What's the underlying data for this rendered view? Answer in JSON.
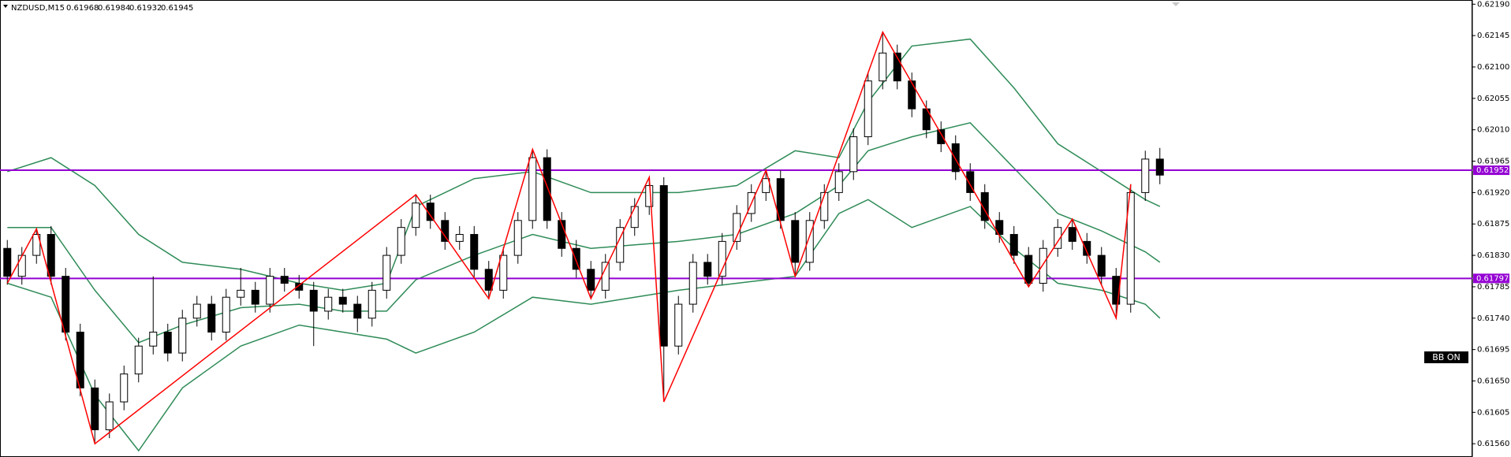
{
  "chart_data": {
    "type": "candlestick",
    "title": "NZDUSD,M15",
    "indicator_label": "BB ON",
    "ylim": [
      0.61541,
      0.62196
    ],
    "yticks": [
      {
        "value": 0.6219,
        "label": "0.62190"
      },
      0.62145,
      {
        "value": 0.621,
        "label": "0.62100"
      },
      0.62055,
      {
        "value": 0.6201,
        "label": "0.62010"
      },
      0.61965,
      {
        "value": 0.6192,
        "label": "0.61920"
      },
      0.61875,
      {
        "value": 0.6183,
        "label": "0.61830"
      },
      0.61785,
      {
        "value": 0.6174,
        "label": "0.61740"
      },
      0.61695,
      {
        "value": 0.6165,
        "label": "0.61650"
      },
      0.61605,
      {
        "value": 0.6156,
        "label": "0.61560"
      }
    ],
    "open": [
      0.6184,
      0.618,
      0.6183,
      0.6186,
      0.618,
      0.6172,
      0.6164,
      0.6158,
      0.6162,
      0.6166,
      0.617,
      0.6172,
      0.6169,
      0.6174,
      0.6176,
      0.6172,
      0.6177,
      0.6178,
      0.6176,
      0.618,
      0.6179,
      0.6178,
      0.6175,
      0.6177,
      0.6176,
      0.6174,
      0.6178,
      0.6183,
      0.6187,
      0.61905,
      0.6188,
      0.6185,
      0.6186,
      0.6181,
      0.6178,
      0.6183,
      0.6188,
      0.6197,
      0.6188,
      0.6184,
      0.6181,
      0.6178,
      0.6182,
      0.6187,
      0.619,
      0.6193,
      0.617,
      0.6176,
      0.6182,
      0.618,
      0.6185,
      0.6189,
      0.6192,
      0.6194,
      0.6188,
      0.6182,
      0.6188,
      0.6192,
      0.6195,
      0.62,
      0.6208,
      0.6212,
      0.6208,
      0.6204,
      0.6201,
      0.6199,
      0.6195,
      0.6192,
      0.6188,
      0.6186,
      0.6183,
      0.6179,
      0.6184,
      0.6187,
      0.6185,
      0.6183,
      0.618,
      0.6176,
      0.6192,
      0.61968
    ],
    "high": [
      0.61852,
      0.61842,
      0.61868,
      0.61872,
      0.61812,
      0.61732,
      0.61652,
      0.61632,
      0.61672,
      0.61712,
      0.618,
      0.61732,
      0.61752,
      0.61772,
      0.61772,
      0.61782,
      0.61812,
      0.61792,
      0.61812,
      0.61812,
      0.61802,
      0.61792,
      0.61782,
      0.61782,
      0.61772,
      0.61792,
      0.61842,
      0.61882,
      0.61917,
      0.61917,
      0.61892,
      0.61872,
      0.61872,
      0.61822,
      0.61842,
      0.61892,
      0.61982,
      0.61982,
      0.61892,
      0.61852,
      0.61822,
      0.61832,
      0.61882,
      0.61912,
      0.61942,
      0.61942,
      0.61772,
      0.61832,
      0.61832,
      0.61862,
      0.61902,
      0.61932,
      0.61952,
      0.61952,
      0.61892,
      0.61892,
      0.61932,
      0.61962,
      0.62012,
      0.62092,
      0.6215,
      0.62132,
      0.62092,
      0.62052,
      0.62022,
      0.62002,
      0.61962,
      0.61932,
      0.61892,
      0.61872,
      0.61842,
      0.61852,
      0.61882,
      0.61882,
      0.61862,
      0.61842,
      0.61812,
      0.61932,
      0.6198,
      0.61984
    ],
    "low": [
      0.61788,
      0.61788,
      0.61818,
      0.61788,
      0.61708,
      0.61628,
      0.6156,
      0.61568,
      0.61608,
      0.61648,
      0.61688,
      0.61678,
      0.61678,
      0.61728,
      0.61708,
      0.61708,
      0.61758,
      0.61748,
      0.61748,
      0.61778,
      0.61768,
      0.617,
      0.61738,
      0.61748,
      0.6172,
      0.61728,
      0.61768,
      0.61818,
      0.61858,
      0.61868,
      0.61838,
      0.61838,
      0.61798,
      0.61768,
      0.61768,
      0.61818,
      0.61868,
      0.61868,
      0.61828,
      0.61798,
      0.61768,
      0.61768,
      0.61808,
      0.61858,
      0.61888,
      0.6162,
      0.61688,
      0.61748,
      0.61788,
      0.61788,
      0.61838,
      0.61878,
      0.61908,
      0.61868,
      0.618,
      0.61808,
      0.61868,
      0.61908,
      0.61938,
      0.61988,
      0.62068,
      0.62068,
      0.62028,
      0.61998,
      0.61978,
      0.61938,
      0.61908,
      0.61868,
      0.61848,
      0.61818,
      0.61785,
      0.61778,
      0.61828,
      0.61838,
      0.61818,
      0.61788,
      0.6174,
      0.61748,
      0.61908,
      0.61932
    ],
    "close": [
      0.618,
      0.6183,
      0.6186,
      0.618,
      0.6172,
      0.6164,
      0.6158,
      0.6162,
      0.6166,
      0.617,
      0.6172,
      0.6169,
      0.6174,
      0.6176,
      0.6172,
      0.6177,
      0.6178,
      0.6176,
      0.618,
      0.6179,
      0.6178,
      0.6175,
      0.6177,
      0.6176,
      0.6174,
      0.6178,
      0.6183,
      0.6187,
      0.61905,
      0.6188,
      0.6185,
      0.6186,
      0.6181,
      0.6178,
      0.6183,
      0.6188,
      0.6197,
      0.6188,
      0.6184,
      0.6181,
      0.6178,
      0.6182,
      0.6187,
      0.619,
      0.6193,
      0.617,
      0.6176,
      0.6182,
      0.618,
      0.6185,
      0.6189,
      0.6192,
      0.6194,
      0.6188,
      0.6182,
      0.6188,
      0.6192,
      0.6195,
      0.62,
      0.6208,
      0.6212,
      0.6208,
      0.6204,
      0.6201,
      0.6199,
      0.6195,
      0.6192,
      0.6188,
      0.6186,
      0.6183,
      0.6179,
      0.6184,
      0.6187,
      0.6185,
      0.6183,
      0.618,
      0.6176,
      0.6192,
      0.61968,
      0.61945
    ],
    "zigzag": {
      "color": "#ff0000",
      "x": [
        0,
        2,
        6,
        28,
        33,
        36,
        40,
        44,
        45,
        52,
        54,
        60,
        70,
        73,
        76,
        77
      ],
      "y": [
        0.6179,
        0.61868,
        0.6156,
        0.61917,
        0.61768,
        0.61982,
        0.61768,
        0.61942,
        0.6162,
        0.61952,
        0.618,
        0.6215,
        0.61785,
        0.61882,
        0.6174,
        0.61932
      ]
    },
    "bands": {
      "color": "#2e8b57",
      "x": [
        0,
        3,
        6,
        9,
        12,
        16,
        20,
        23,
        26,
        28,
        32,
        36,
        40,
        43,
        46,
        50,
        54,
        57,
        59,
        62,
        66,
        69,
        72,
        75,
        78,
        79
      ],
      "upper": [
        0.6195,
        0.6197,
        0.6193,
        0.6186,
        0.6182,
        0.6181,
        0.6179,
        0.6178,
        0.6179,
        0.619,
        0.6194,
        0.6195,
        0.6192,
        0.6192,
        0.6192,
        0.6193,
        0.6198,
        0.6197,
        0.6205,
        0.6213,
        0.6214,
        0.6207,
        0.6199,
        0.6195,
        0.6191,
        0.619
      ],
      "middle": [
        0.6187,
        0.6187,
        0.6178,
        0.61705,
        0.6173,
        0.61755,
        0.6176,
        0.6175,
        0.6175,
        0.61795,
        0.6183,
        0.6186,
        0.6184,
        0.61845,
        0.6185,
        0.6186,
        0.6189,
        0.6193,
        0.6198,
        0.62,
        0.6202,
        0.61955,
        0.6189,
        0.61865,
        0.61835,
        0.6182
      ],
      "lower": [
        0.6179,
        0.6177,
        0.6163,
        0.6155,
        0.6164,
        0.617,
        0.6173,
        0.6172,
        0.6171,
        0.6169,
        0.6172,
        0.6177,
        0.6176,
        0.6177,
        0.6178,
        0.6179,
        0.618,
        0.6189,
        0.6191,
        0.6187,
        0.619,
        0.6184,
        0.6179,
        0.6178,
        0.6176,
        0.6174
      ]
    },
    "levels": [
      {
        "value": 0.61952,
        "color": "#9400d3"
      },
      {
        "value": 0.61797,
        "color": "#9400d3"
      }
    ]
  }
}
